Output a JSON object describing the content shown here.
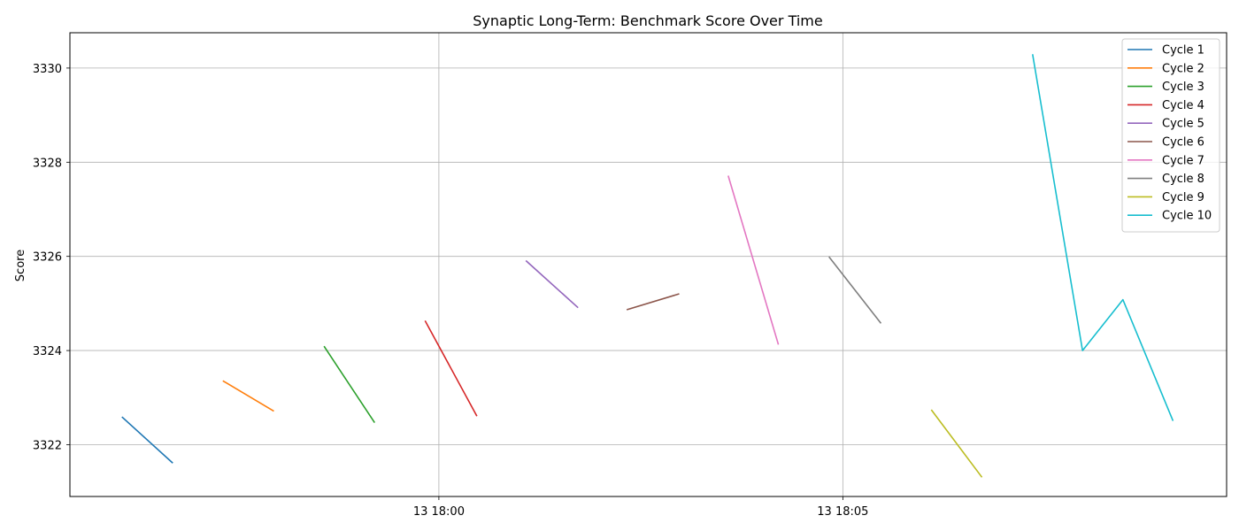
{
  "chart_data": {
    "type": "line",
    "title": "Synaptic Long-Term: Benchmark Score Over Time",
    "xlabel": "",
    "ylabel": "Score",
    "x_ticks": [
      {
        "value": "13 18:00:00",
        "label": "13 18:00"
      },
      {
        "value": "13 18:05:00",
        "label": "13 18:05"
      }
    ],
    "xlim": [
      "13 17:55:26",
      "13 18:09:45"
    ],
    "y_ticks": [
      3322,
      3324,
      3326,
      3328,
      3330
    ],
    "ylim": [
      3320.9,
      3330.75
    ],
    "grid": true,
    "legend_position": "upper right",
    "series": [
      {
        "name": "Cycle 1",
        "color": "#1f77b4",
        "points": [
          [
            "13 17:56:05",
            3322.58
          ],
          [
            "13 17:56:42",
            3321.62
          ]
        ]
      },
      {
        "name": "Cycle 2",
        "color": "#ff7f0e",
        "points": [
          [
            "13 17:57:20",
            3323.35
          ],
          [
            "13 17:57:57",
            3322.72
          ]
        ]
      },
      {
        "name": "Cycle 3",
        "color": "#2ca02c",
        "points": [
          [
            "13 17:58:35",
            3324.08
          ],
          [
            "13 17:59:12",
            3322.48
          ]
        ]
      },
      {
        "name": "Cycle 4",
        "color": "#d62728",
        "points": [
          [
            "13 17:59:50",
            3324.62
          ],
          [
            "13 18:00:28",
            3322.62
          ]
        ]
      },
      {
        "name": "Cycle 5",
        "color": "#9467bd",
        "points": [
          [
            "13 18:01:05",
            3325.9
          ],
          [
            "13 18:01:43",
            3324.92
          ]
        ]
      },
      {
        "name": "Cycle 6",
        "color": "#8c564b",
        "points": [
          [
            "13 18:02:20",
            3324.87
          ],
          [
            "13 18:02:58",
            3325.2
          ]
        ]
      },
      {
        "name": "Cycle 7",
        "color": "#e377c2",
        "points": [
          [
            "13 18:03:35",
            3327.7
          ],
          [
            "13 18:04:12",
            3324.14
          ]
        ]
      },
      {
        "name": "Cycle 8",
        "color": "#7f7f7f",
        "points": [
          [
            "13 18:04:50",
            3325.98
          ],
          [
            "13 18:05:28",
            3324.59
          ]
        ]
      },
      {
        "name": "Cycle 9",
        "color": "#bcbd22",
        "points": [
          [
            "13 18:06:06",
            3322.73
          ],
          [
            "13 18:06:43",
            3321.32
          ]
        ]
      },
      {
        "name": "Cycle 10",
        "color": "#17becf",
        "points": [
          [
            "13 18:07:21",
            3330.28
          ],
          [
            "13 18:07:58",
            3324.0
          ],
          [
            "13 18:08:28",
            3325.08
          ],
          [
            "13 18:09:05",
            3322.52
          ]
        ]
      }
    ]
  }
}
